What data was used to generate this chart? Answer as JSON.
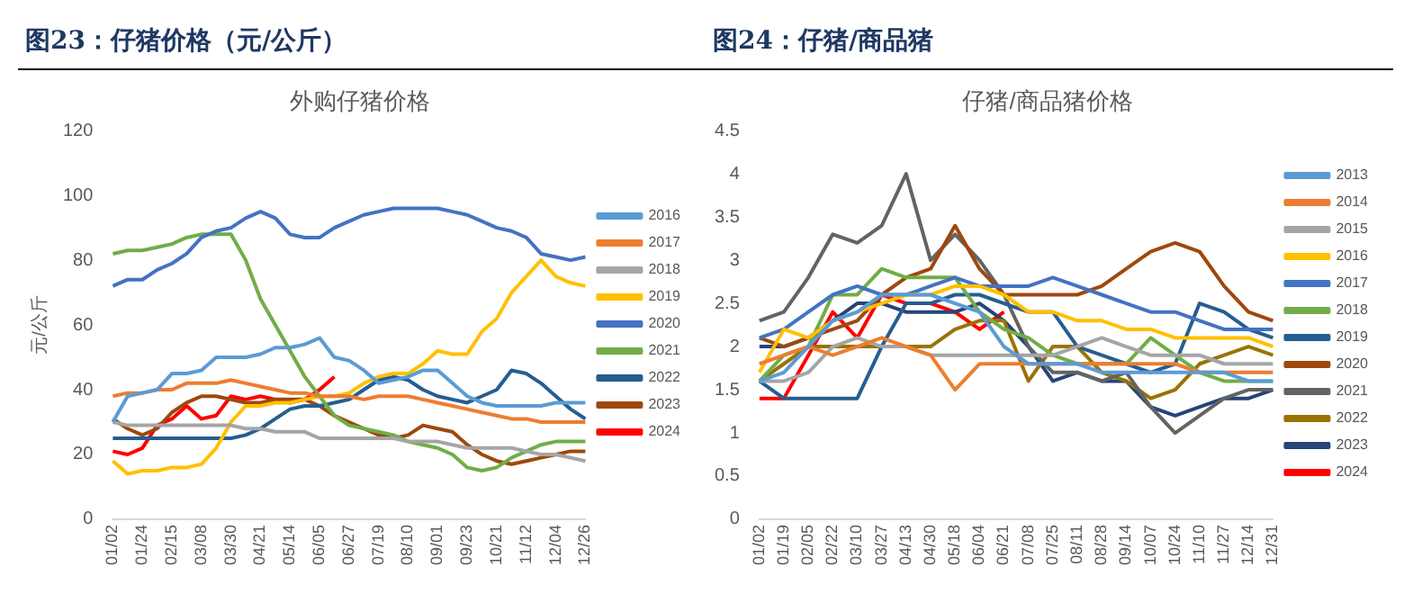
{
  "chart_data": [
    {
      "type": "line",
      "title": "图23：仔猪价格（元/公斤）",
      "subtitle": "外购仔猪价格",
      "ylabel": "元/公斤",
      "legend": "right",
      "marker": "none",
      "grid": false,
      "ylim": [
        0,
        120
      ],
      "yticks": [
        0,
        20,
        40,
        60,
        80,
        100,
        120
      ],
      "categories": [
        "01/02",
        null,
        "01/24",
        null,
        "02/15",
        null,
        "03/08",
        null,
        "03/30",
        null,
        "04/21",
        null,
        "05/14",
        null,
        "06/05",
        null,
        "06/27",
        null,
        "07/19",
        null,
        "08/10",
        null,
        "09/01",
        null,
        "09/23",
        null,
        "10/21",
        null,
        "11/12",
        null,
        "12/04",
        null,
        "12/26"
      ],
      "series": [
        {
          "name": "2016",
          "color": "#5b9bd5",
          "values": [
            30,
            38,
            39,
            40,
            45,
            45,
            46,
            50,
            50,
            50,
            51,
            53,
            53,
            54,
            56,
            50,
            49,
            46,
            42,
            43,
            44,
            46,
            46,
            42,
            38,
            36,
            35,
            35,
            35,
            35,
            36,
            36,
            36
          ]
        },
        {
          "name": "2017",
          "color": "#ed7d31",
          "values": [
            38,
            39,
            39,
            40,
            40,
            42,
            42,
            42,
            43,
            42,
            41,
            40,
            39,
            39,
            38,
            38,
            38,
            37,
            38,
            38,
            38,
            37,
            36,
            35,
            34,
            33,
            32,
            31,
            31,
            30,
            30,
            30,
            30
          ]
        },
        {
          "name": "2018",
          "color": "#a5a5a5",
          "values": [
            30,
            29,
            29,
            29,
            29,
            29,
            29,
            29,
            29,
            28,
            28,
            27,
            27,
            27,
            25,
            25,
            25,
            25,
            25,
            25,
            24,
            24,
            24,
            23,
            22,
            22,
            22,
            22,
            21,
            20,
            20,
            19,
            18
          ]
        },
        {
          "name": "2019",
          "color": "#ffc000",
          "values": [
            18,
            14,
            15,
            15,
            16,
            16,
            17,
            22,
            30,
            35,
            35,
            36,
            36,
            37,
            38,
            38,
            39,
            42,
            44,
            45,
            45,
            48,
            52,
            51,
            51,
            58,
            62,
            70,
            75,
            80,
            75,
            73,
            72
          ]
        },
        {
          "name": "2020",
          "color": "#4472c4",
          "values": [
            72,
            74,
            74,
            77,
            79,
            82,
            87,
            89,
            90,
            93,
            95,
            93,
            88,
            87,
            87,
            90,
            92,
            94,
            95,
            96,
            96,
            96,
            96,
            95,
            94,
            92,
            90,
            89,
            87,
            82,
            81,
            80,
            81
          ]
        },
        {
          "name": "2021",
          "color": "#70ad47",
          "values": [
            82,
            83,
            83,
            84,
            85,
            87,
            88,
            88,
            88,
            80,
            68,
            60,
            52,
            44,
            38,
            32,
            29,
            28,
            27,
            26,
            24,
            23,
            22,
            20,
            16,
            15,
            16,
            19,
            21,
            23,
            24,
            24,
            24
          ]
        },
        {
          "name": "2022",
          "color": "#255e91",
          "values": [
            25,
            25,
            25,
            25,
            25,
            25,
            25,
            25,
            25,
            26,
            28,
            31,
            34,
            35,
            35,
            36,
            37,
            40,
            43,
            44,
            43,
            40,
            38,
            37,
            36,
            38,
            40,
            46,
            45,
            42,
            38,
            34,
            31
          ]
        },
        {
          "name": "2023",
          "color": "#9e480e",
          "values": [
            31,
            28,
            26,
            28,
            33,
            36,
            38,
            38,
            37,
            36,
            36,
            37,
            37,
            37,
            35,
            32,
            30,
            28,
            26,
            25,
            26,
            29,
            28,
            27,
            23,
            20,
            18,
            17,
            18,
            19,
            20,
            21,
            21
          ]
        },
        {
          "name": "2024",
          "color": "#ff0000",
          "values": [
            21,
            20,
            22,
            29,
            31,
            35,
            31,
            32,
            38,
            37,
            38,
            37,
            36,
            37,
            40,
            44,
            null,
            null,
            null,
            null,
            null,
            null,
            null,
            null,
            null,
            null,
            null,
            null,
            null,
            null,
            null,
            null,
            null
          ]
        }
      ]
    },
    {
      "type": "line",
      "title": "图24：仔猪/商品猪",
      "subtitle": "仔猪/商品猪价格",
      "legend": "right",
      "marker": "none",
      "grid": false,
      "ylim": [
        0,
        4.5
      ],
      "yticks": [
        0,
        0.5,
        1,
        1.5,
        2,
        2.5,
        3,
        3.5,
        4,
        4.5
      ],
      "categories": [
        "01/02",
        "01/19",
        "02/05",
        "02/22",
        "03/10",
        "03/27",
        "04/13",
        "04/30",
        "05/18",
        "06/04",
        "06/21",
        "07/08",
        "07/25",
        "08/11",
        "08/28",
        "09/14",
        "10/07",
        "10/24",
        "11/10",
        "11/27",
        "12/14",
        "12/31"
      ],
      "series": [
        {
          "name": "2013",
          "color": "#5b9bd5",
          "values": [
            1.6,
            1.7,
            2.0,
            2.3,
            2.4,
            2.6,
            2.6,
            2.6,
            2.5,
            2.4,
            2.0,
            1.8,
            1.8,
            1.8,
            1.7,
            1.7,
            1.7,
            1.7,
            1.7,
            1.7,
            1.6,
            1.6
          ]
        },
        {
          "name": "2014",
          "color": "#ed7d31",
          "values": [
            1.8,
            1.9,
            2.0,
            1.9,
            2.0,
            2.1,
            2.0,
            1.9,
            1.5,
            1.8,
            1.8,
            1.8,
            1.8,
            1.8,
            1.8,
            1.8,
            1.8,
            1.8,
            1.7,
            1.7,
            1.7,
            1.7
          ]
        },
        {
          "name": "2015",
          "color": "#a5a5a5",
          "values": [
            1.6,
            1.6,
            1.7,
            2.0,
            2.1,
            2.0,
            2.0,
            1.9,
            1.9,
            1.9,
            1.9,
            1.9,
            1.9,
            2.0,
            2.1,
            2.0,
            1.9,
            1.9,
            1.9,
            1.8,
            1.8,
            1.8
          ]
        },
        {
          "name": "2016",
          "color": "#ffc000",
          "values": [
            1.7,
            2.2,
            2.1,
            2.3,
            2.4,
            2.5,
            2.6,
            2.6,
            2.7,
            2.7,
            2.6,
            2.4,
            2.4,
            2.3,
            2.3,
            2.2,
            2.2,
            2.1,
            2.1,
            2.1,
            2.1,
            2.0
          ]
        },
        {
          "name": "2017",
          "color": "#4472c4",
          "values": [
            2.1,
            2.2,
            2.4,
            2.6,
            2.7,
            2.6,
            2.6,
            2.7,
            2.8,
            2.7,
            2.7,
            2.7,
            2.8,
            2.7,
            2.6,
            2.5,
            2.4,
            2.4,
            2.3,
            2.2,
            2.2,
            2.2
          ]
        },
        {
          "name": "2018",
          "color": "#70ad47",
          "values": [
            1.6,
            1.9,
            2.0,
            2.6,
            2.6,
            2.9,
            2.8,
            2.8,
            2.8,
            2.4,
            2.2,
            2.1,
            1.9,
            1.8,
            1.8,
            1.8,
            2.1,
            1.9,
            1.7,
            1.6,
            1.6,
            1.6
          ]
        },
        {
          "name": "2019",
          "color": "#255e91",
          "values": [
            1.6,
            1.4,
            1.4,
            1.4,
            1.4,
            2.0,
            2.5,
            2.5,
            2.6,
            2.6,
            2.5,
            2.4,
            2.4,
            2.0,
            1.9,
            1.8,
            1.7,
            1.8,
            2.5,
            2.4,
            2.2,
            2.1
          ]
        },
        {
          "name": "2020",
          "color": "#9e480e",
          "values": [
            2.1,
            2.0,
            2.1,
            2.2,
            2.3,
            2.6,
            2.8,
            2.9,
            3.4,
            2.9,
            2.6,
            2.6,
            2.6,
            2.6,
            2.7,
            2.9,
            3.1,
            3.2,
            3.1,
            2.7,
            2.4,
            2.3
          ]
        },
        {
          "name": "2021",
          "color": "#636363",
          "values": [
            2.3,
            2.4,
            2.8,
            3.3,
            3.2,
            3.4,
            4.0,
            3.0,
            3.3,
            3.0,
            2.6,
            2.0,
            1.7,
            1.7,
            1.6,
            1.7,
            1.3,
            1.0,
            1.2,
            1.4,
            1.5,
            1.5
          ]
        },
        {
          "name": "2022",
          "color": "#997300",
          "values": [
            1.6,
            1.8,
            2.0,
            2.0,
            2.0,
            2.0,
            2.0,
            2.0,
            2.2,
            2.3,
            2.3,
            1.6,
            2.0,
            2.0,
            1.7,
            1.6,
            1.4,
            1.5,
            1.8,
            1.9,
            2.0,
            1.9
          ]
        },
        {
          "name": "2023",
          "color": "#264478",
          "values": [
            2.0,
            2.0,
            2.1,
            2.3,
            2.5,
            2.5,
            2.4,
            2.4,
            2.4,
            2.5,
            2.3,
            2.0,
            1.6,
            1.7,
            1.6,
            1.6,
            1.3,
            1.2,
            1.3,
            1.4,
            1.4,
            1.5
          ]
        },
        {
          "name": "2024",
          "color": "#ff0000",
          "values": [
            1.4,
            1.4,
            1.9,
            2.4,
            2.1,
            2.6,
            2.5,
            2.5,
            2.4,
            2.2,
            2.4,
            null,
            null,
            null,
            null,
            null,
            null,
            null,
            null,
            null,
            null,
            null
          ]
        }
      ]
    }
  ]
}
